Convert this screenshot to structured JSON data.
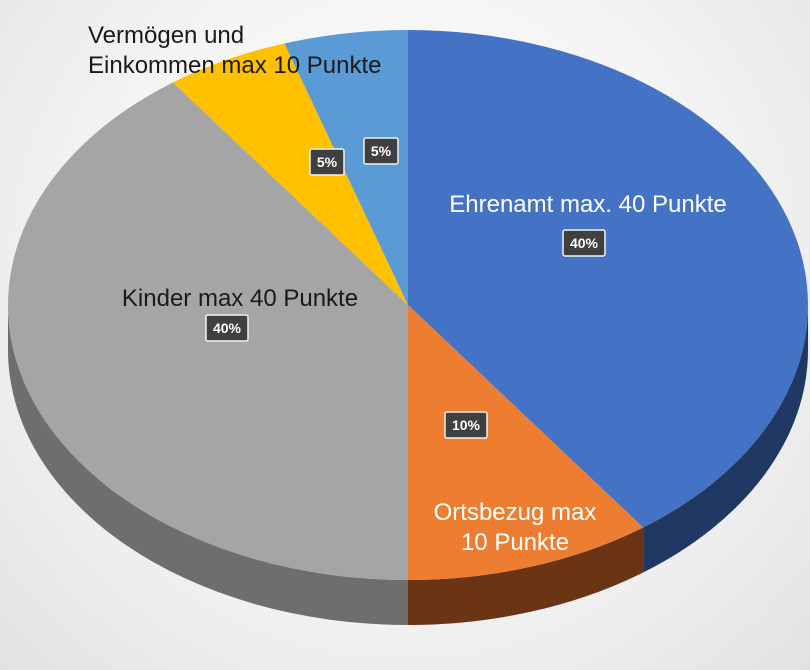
{
  "chart_data": {
    "type": "pie",
    "style": "3d",
    "slices": [
      {
        "label_lines": [
          "Ehrenamt max. 40 Punkte"
        ],
        "value": 40,
        "percent_label": "40%",
        "color": "#4472C4",
        "side_color": "#1F3864",
        "label_color": "#ffffff"
      },
      {
        "label_lines": [
          "Ortsbezug max",
          "10 Punkte"
        ],
        "value": 10,
        "percent_label": "10%",
        "color": "#ED7D31",
        "side_color": "#6B3515",
        "label_color": "#ffffff"
      },
      {
        "label_lines": [
          "Kinder max 40 Punkte"
        ],
        "value": 40,
        "percent_label": "40%",
        "color": "#A5A5A5",
        "side_color": "#6E6E6E",
        "label_color": "#1a1a1a"
      },
      {
        "label_lines": [
          "Vermögen und",
          "Einkommen max 10 Punkte"
        ],
        "value": 5,
        "percent_label": "5%",
        "color": "#FFC000",
        "side_color": "#7F6000",
        "label_color": "#1a1a1a"
      },
      {
        "label_lines": [],
        "value": 5,
        "percent_label": "5%",
        "color": "#5B9BD5",
        "side_color": "#2E4D6B",
        "label_color": "#1a1a1a"
      }
    ]
  }
}
